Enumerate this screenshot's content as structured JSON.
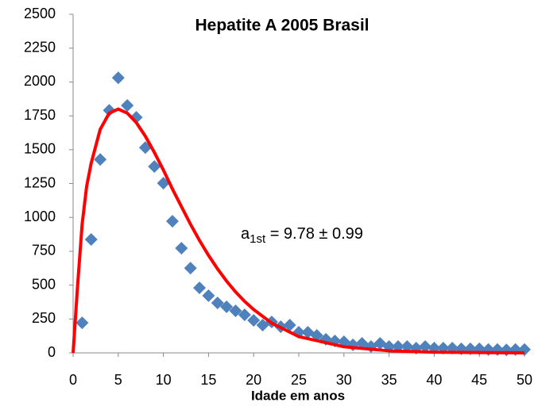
{
  "chart_data": {
    "type": "scatter",
    "title": "Hepatite A 2005 Brasil",
    "x_label": "Idade em anos",
    "annotation": {
      "base": "a",
      "sub": "1st",
      "text": " = 9.78 ± 0.99"
    },
    "xlim": [
      0,
      50
    ],
    "xticks": [
      0,
      5,
      10,
      15,
      20,
      25,
      30,
      35,
      40,
      45,
      50
    ],
    "ylim": [
      0,
      2500
    ],
    "yticks": [
      0,
      250,
      500,
      750,
      1000,
      1250,
      1500,
      1750,
      2000,
      2250,
      2500
    ],
    "series": [
      {
        "type": "scatter",
        "marker": "diamond",
        "color": "#4f81bd",
        "x": [
          1,
          2,
          3,
          4,
          5,
          6,
          7,
          8,
          9,
          10,
          11,
          12,
          13,
          14,
          15,
          16,
          17,
          18,
          19,
          20,
          21,
          22,
          23,
          24,
          25,
          26,
          27,
          28,
          29,
          30,
          31,
          32,
          33,
          34,
          35,
          36,
          37,
          38,
          39,
          40,
          41,
          42,
          43,
          44,
          45,
          46,
          47,
          48,
          49,
          50
        ],
        "values": [
          222,
          837,
          1428,
          1791,
          2031,
          1827,
          1739,
          1516,
          1376,
          1253,
          972,
          773,
          626,
          480,
          422,
          369,
          340,
          310,
          281,
          240,
          205,
          228,
          193,
          205,
          152,
          152,
          129,
          100,
          88,
          82,
          59,
          70,
          47,
          70,
          47,
          47,
          47,
          35,
          47,
          35,
          35,
          35,
          30,
          30,
          30,
          25,
          25,
          22,
          25,
          25
        ]
      },
      {
        "type": "line",
        "color": "#ff0000",
        "x": [
          0,
          0.5,
          1,
          1.5,
          2,
          3,
          4,
          5,
          6,
          7,
          8,
          9,
          10,
          11,
          12,
          13,
          14,
          15,
          16,
          17,
          18,
          19,
          20,
          22,
          25,
          30,
          35,
          40,
          50
        ],
        "values": [
          0,
          500,
          950,
          1230,
          1400,
          1650,
          1770,
          1800,
          1770,
          1700,
          1600,
          1480,
          1350,
          1210,
          1080,
          950,
          830,
          720,
          620,
          530,
          450,
          380,
          320,
          220,
          120,
          45,
          15,
          5,
          0
        ]
      }
    ]
  }
}
